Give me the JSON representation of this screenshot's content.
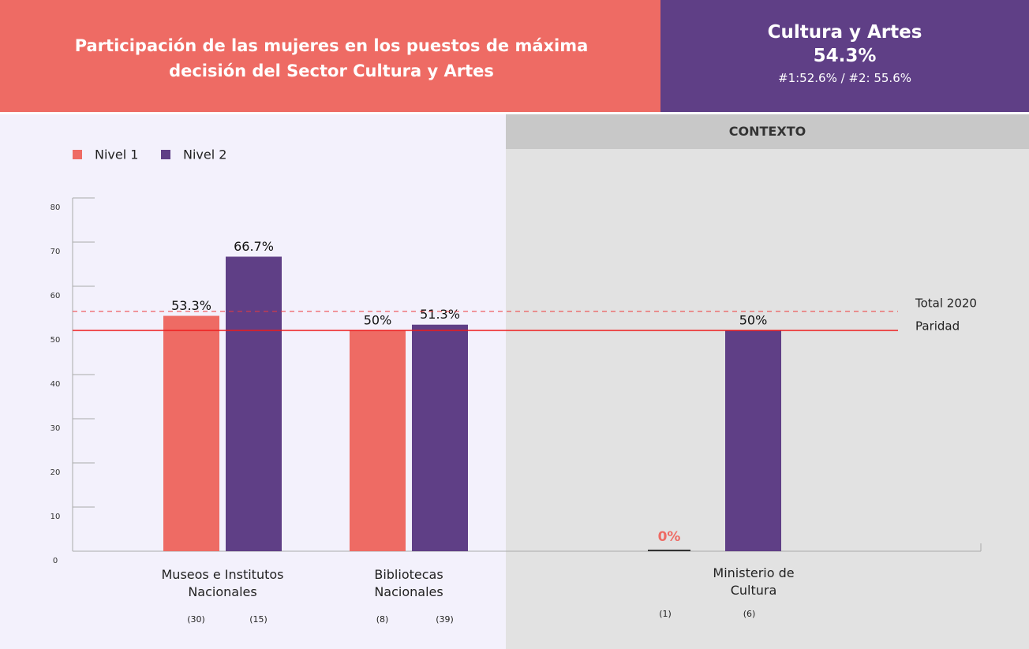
{
  "header": {
    "title": "Participación de las mujeres en los puestos de máxima decisión del Sector Cultura y Artes",
    "summary_title": "Cultura y Artes",
    "summary_value": "54.3%",
    "summary_detail": "#1:52.6% / #2: 55.6%"
  },
  "context_label": "CONTEXTO",
  "chart_data": {
    "type": "bar",
    "categories": [
      "Museos e Institutos Nacionales",
      "Bibliotecas Nacionales",
      "Ministerio de Cultura"
    ],
    "series": [
      {
        "name": "Nivel 1",
        "color": "#ee6b64",
        "values": [
          53.3,
          50,
          0
        ],
        "value_labels": [
          "53.3%",
          "50%",
          "0%"
        ],
        "counts": [
          "(30)",
          "(8)",
          "(1)"
        ]
      },
      {
        "name": "Nivel 2",
        "color": "#5f3f86",
        "values": [
          66.7,
          51.3,
          50
        ],
        "value_labels": [
          "66.7%",
          "51.3%",
          "50%"
        ],
        "counts": [
          "(15)",
          "(39)",
          "(6)"
        ]
      }
    ],
    "ylim": [
      0,
      80
    ],
    "yticks": [
      0,
      10,
      20,
      30,
      40,
      50,
      60,
      70,
      80
    ],
    "reference_lines": [
      {
        "label": "Total 2020",
        "value": 54.3,
        "color": "#ee3b3b",
        "style": "dashed"
      },
      {
        "label": "Paridad",
        "value": 50,
        "color": "#ee1c1c",
        "style": "solid"
      }
    ]
  }
}
